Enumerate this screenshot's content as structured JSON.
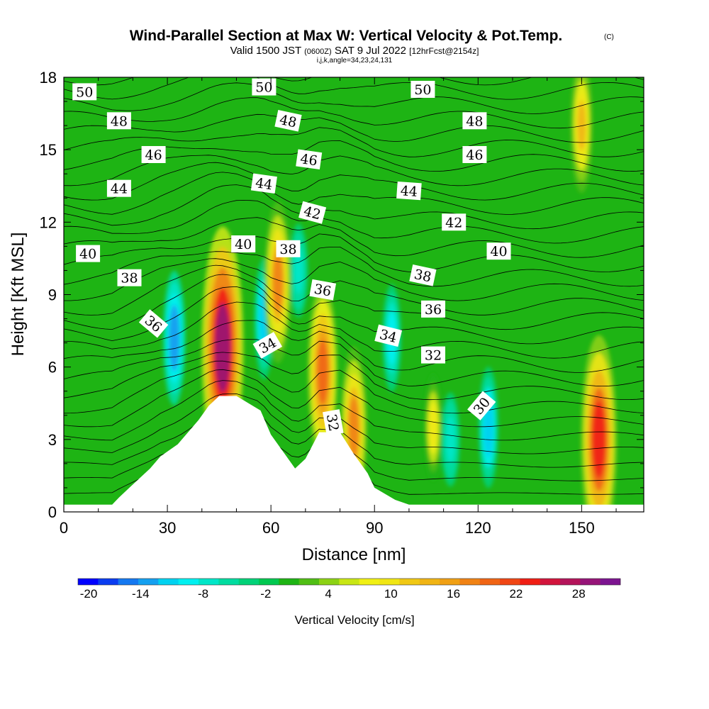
{
  "chart_data": {
    "type": "heatmap",
    "title": "Wind-Parallel Section at Max W: Vertical Velocity & Pot.Temp.",
    "title_mark": "(C)",
    "subtitle": {
      "part1": "Valid 1500 JST",
      "part2": "(0600Z)",
      "part3": "SAT 9 Jul 2022",
      "part4": "[12hrFcst@2154z]"
    },
    "subtitle2": "i,j,k,angle=34,23,24,131",
    "xlabel": "Distance [nm]",
    "ylabel": "Height [Kft MSL]",
    "xlim": [
      0,
      168
    ],
    "ylim": [
      0,
      18
    ],
    "xticks": [
      0,
      30,
      60,
      90,
      120,
      150
    ],
    "yticks": [
      0,
      3,
      6,
      9,
      12,
      15,
      18
    ],
    "colorbar": {
      "label": "Vertical Velocity [cm/s]",
      "min": -20,
      "max": 32,
      "step": 2,
      "ticks": [
        -20,
        -14,
        -8,
        -2,
        4,
        10,
        16,
        22,
        28
      ],
      "colors": [
        "#0000ff",
        "#0a3cf0",
        "#1478f0",
        "#14a0f0",
        "#00d2f0",
        "#00f0f0",
        "#00e6c8",
        "#00dca0",
        "#00d278",
        "#00c850",
        "#1eb414",
        "#50be14",
        "#8cd214",
        "#c8e614",
        "#f0f014",
        "#f0e614",
        "#f0c814",
        "#f0b414",
        "#f0a014",
        "#f08214",
        "#f06414",
        "#f04614",
        "#f01e14",
        "#d2143c",
        "#b4145a",
        "#961478",
        "#7c1490"
      ]
    },
    "vertical_velocity_features": [
      {
        "x": 46,
        "y": 6.8,
        "w": 30,
        "kind": "updraft"
      },
      {
        "x": 62,
        "y": 9.5,
        "w": 18,
        "kind": "updraft"
      },
      {
        "x": 75,
        "y": 5.8,
        "w": 20,
        "kind": "updraft"
      },
      {
        "x": 84,
        "y": 3.5,
        "w": 18,
        "kind": "updraft"
      },
      {
        "x": 107,
        "y": 3.5,
        "w": 10,
        "kind": "updraft"
      },
      {
        "x": 155,
        "y": 3.0,
        "w": 25,
        "kind": "updraft"
      },
      {
        "x": 150,
        "y": 16.0,
        "w": 14,
        "kind": "updraft"
      },
      {
        "x": 32,
        "y": 7.2,
        "w": -14,
        "kind": "downdraft"
      },
      {
        "x": 58,
        "y": 8.0,
        "w": -12,
        "kind": "downdraft"
      },
      {
        "x": 68,
        "y": 10.0,
        "w": -8,
        "kind": "downdraft"
      },
      {
        "x": 95,
        "y": 7.2,
        "w": -10,
        "kind": "downdraft"
      },
      {
        "x": 112,
        "y": 3.0,
        "w": -8,
        "kind": "downdraft"
      },
      {
        "x": 123,
        "y": 3.5,
        "w": -12,
        "kind": "downdraft"
      }
    ],
    "terrain_top_kft": [
      [
        0,
        0.3
      ],
      [
        14,
        0.3
      ],
      [
        16,
        0.6
      ],
      [
        19,
        1.0
      ],
      [
        25,
        1.8
      ],
      [
        28,
        2.3
      ],
      [
        33,
        2.8
      ],
      [
        39,
        3.8
      ],
      [
        42,
        4.4
      ],
      [
        45,
        4.8
      ],
      [
        50,
        4.8
      ],
      [
        57,
        4.2
      ],
      [
        60,
        3.2
      ],
      [
        64,
        2.4
      ],
      [
        67,
        1.8
      ],
      [
        70,
        2.2
      ],
      [
        74,
        3.3
      ],
      [
        80,
        3.3
      ],
      [
        84,
        2.4
      ],
      [
        88,
        1.6
      ],
      [
        90,
        1.0
      ],
      [
        96,
        0.5
      ],
      [
        100,
        0.3
      ],
      [
        168,
        0.3
      ]
    ],
    "theta_contour_labels": [
      {
        "text": "50",
        "x": 6,
        "y": 17.4,
        "rot": 0
      },
      {
        "text": "50",
        "x": 58,
        "y": 17.6,
        "rot": 0
      },
      {
        "text": "50",
        "x": 104,
        "y": 17.5,
        "rot": 0
      },
      {
        "text": "48",
        "x": 16,
        "y": 16.2,
        "rot": 0
      },
      {
        "text": "48",
        "x": 65,
        "y": 16.2,
        "rot": 12
      },
      {
        "text": "48",
        "x": 119,
        "y": 16.2,
        "rot": 0
      },
      {
        "text": "46",
        "x": 26,
        "y": 14.8,
        "rot": 0
      },
      {
        "text": "46",
        "x": 71,
        "y": 14.6,
        "rot": 8
      },
      {
        "text": "46",
        "x": 119,
        "y": 14.8,
        "rot": 0
      },
      {
        "text": "44",
        "x": 16,
        "y": 13.4,
        "rot": 0
      },
      {
        "text": "44",
        "x": 58,
        "y": 13.6,
        "rot": 8
      },
      {
        "text": "44",
        "x": 100,
        "y": 13.3,
        "rot": 4
      },
      {
        "text": "42",
        "x": 72,
        "y": 12.4,
        "rot": 15
      },
      {
        "text": "42",
        "x": 113,
        "y": 12.0,
        "rot": 0
      },
      {
        "text": "40",
        "x": 7,
        "y": 10.7,
        "rot": 0
      },
      {
        "text": "40",
        "x": 52,
        "y": 11.1,
        "rot": 0
      },
      {
        "text": "40",
        "x": 126,
        "y": 10.8,
        "rot": 0
      },
      {
        "text": "38",
        "x": 19,
        "y": 9.7,
        "rot": 0
      },
      {
        "text": "38",
        "x": 65,
        "y": 10.9,
        "rot": 0
      },
      {
        "text": "38",
        "x": 104,
        "y": 9.8,
        "rot": 12
      },
      {
        "text": "36",
        "x": 26,
        "y": 7.8,
        "rot": 40
      },
      {
        "text": "36",
        "x": 75,
        "y": 9.2,
        "rot": 10
      },
      {
        "text": "36",
        "x": 107,
        "y": 8.4,
        "rot": 0
      },
      {
        "text": "34",
        "x": 59,
        "y": 6.9,
        "rot": -30
      },
      {
        "text": "34",
        "x": 94,
        "y": 7.3,
        "rot": 14
      },
      {
        "text": "32",
        "x": 107,
        "y": 6.5,
        "rot": 0
      },
      {
        "text": "32",
        "x": 78,
        "y": 3.7,
        "rot": 80
      },
      {
        "text": "30",
        "x": 121,
        "y": 4.4,
        "rot": -50
      }
    ]
  }
}
